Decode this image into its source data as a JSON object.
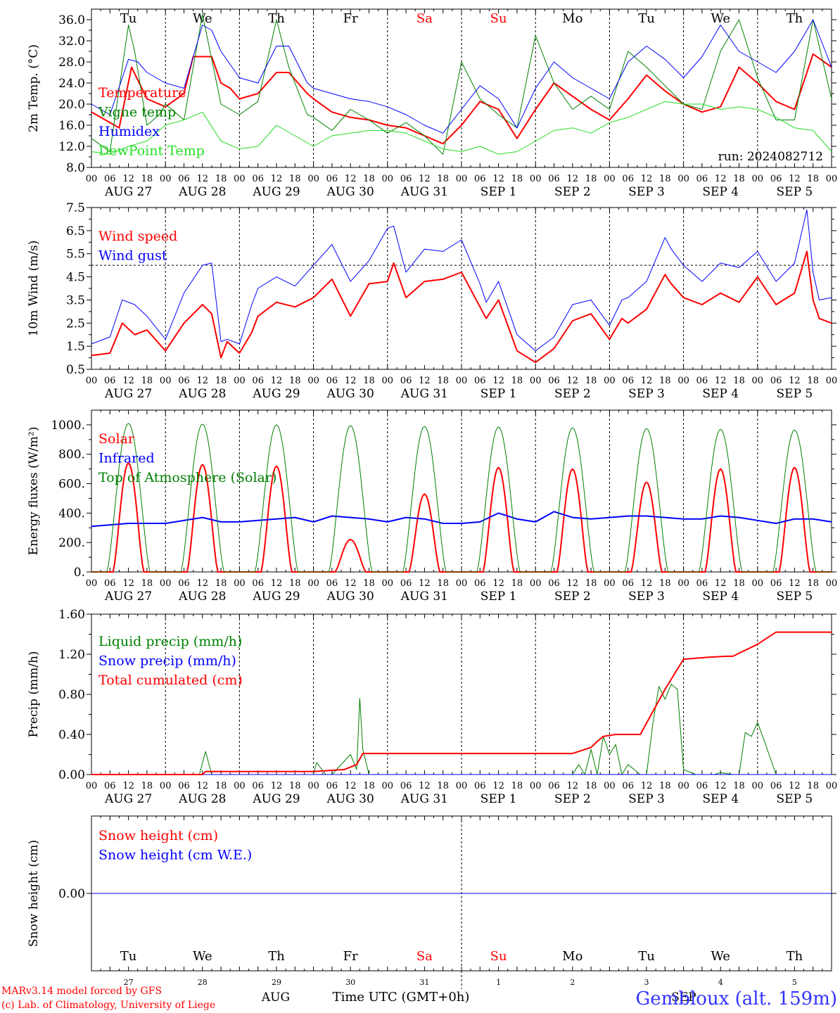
{
  "colors": {
    "red": "#ff0000",
    "green": "#008000",
    "blue": "#0000ff",
    "light_green": "#22dd22",
    "purple": "#7030a0",
    "footer_blue": "#3333ff"
  },
  "date_labels": [
    "AUG 27",
    "AUG 28",
    "AUG 29",
    "AUG 30",
    "AUG 31",
    "SEP  1",
    "SEP  2",
    "SEP  3",
    "SEP  4",
    "SEP  5"
  ],
  "hour_labels": [
    "00",
    "06",
    "12",
    "18"
  ],
  "hour_end_label": "00",
  "weekdays": [
    {
      "label": "Tu",
      "color": "#000000"
    },
    {
      "label": "We",
      "color": "#000000"
    },
    {
      "label": "Th",
      "color": "#000000"
    },
    {
      "label": "Fr",
      "color": "#000000"
    },
    {
      "label": "Sa",
      "color": "#ff0000"
    },
    {
      "label": "Su",
      "color": "#ff0000"
    },
    {
      "label": "Mo",
      "color": "#000000"
    },
    {
      "label": "Tu",
      "color": "#000000"
    },
    {
      "label": "We",
      "color": "#000000"
    },
    {
      "label": "Th",
      "color": "#000000"
    }
  ],
  "day_numbers": [
    "27",
    "28",
    "29",
    "30",
    "31",
    "1",
    "2",
    "3",
    "4",
    "5"
  ],
  "bottom_month_aug": "AUG",
  "bottom_month_sep": "SEP",
  "xlabel": "Time UTC (GMT+0h)",
  "footer": {
    "model": "MARv3.14 model forced by GFS",
    "credit": "(c) Lab. of Climatology, University of Liege",
    "location": "Gembloux (alt. 159m)"
  },
  "chart_data": [
    {
      "type": "line",
      "ylabel": "2m Temp. (°C)",
      "ylim": [
        8,
        38
      ],
      "yticks": [
        "8.0",
        "12.0",
        "16.0",
        "20.0",
        "24.0",
        "28.0",
        "32.0",
        "36.0"
      ],
      "run_label": "run: 2024082712",
      "x_unit": "hours since 2024-08-27 00 UTC",
      "series": [
        {
          "name": "Temperature",
          "color": "#ff0000",
          "width": 2,
          "x": [
            0,
            9,
            13,
            18,
            24,
            30,
            33,
            39,
            42,
            45,
            48,
            54,
            60,
            64,
            70,
            72,
            78,
            84,
            90,
            96,
            102,
            108,
            114,
            120,
            126,
            132,
            138,
            144,
            150,
            156,
            162,
            168,
            174,
            180,
            186,
            192,
            198,
            204,
            210,
            216,
            222,
            228,
            234,
            240
          ],
          "y": [
            18.5,
            15.5,
            27,
            21,
            19.5,
            22,
            29,
            29,
            24,
            23,
            21,
            22,
            26,
            26,
            22,
            21,
            18.5,
            17.5,
            17,
            16,
            15.5,
            14,
            12.5,
            16,
            20.5,
            19,
            13.5,
            19,
            24,
            21.5,
            19,
            17,
            21,
            25.5,
            22.5,
            20,
            18.5,
            19.5,
            27,
            24,
            20.5,
            19,
            29.5,
            27
          ]
        },
        {
          "name": "Vigne temp",
          "color": "#008000",
          "width": 1,
          "x": [
            0,
            6,
            12,
            14,
            18,
            22,
            24,
            30,
            36,
            42,
            48,
            54,
            60,
            64,
            70,
            72,
            78,
            84,
            90,
            96,
            102,
            108,
            114,
            120,
            126,
            132,
            138,
            144,
            150,
            156,
            162,
            168,
            174,
            180,
            186,
            192,
            198,
            204,
            210,
            216,
            222,
            228,
            234,
            240
          ],
          "y": [
            13.5,
            11,
            35,
            30,
            16,
            18,
            20,
            17,
            37,
            20,
            18,
            20.5,
            36,
            27,
            18,
            17.5,
            15,
            19,
            17,
            14.5,
            16.5,
            14,
            10.5,
            28,
            21,
            18,
            15.5,
            33,
            24,
            19,
            21.5,
            19,
            30,
            27,
            23.5,
            20,
            19,
            30,
            36,
            25,
            17,
            17,
            36,
            21
          ]
        },
        {
          "name": "Humidex",
          "color": "#0000ff",
          "width": 1,
          "x": [
            0,
            6,
            12,
            15,
            18,
            24,
            30,
            36,
            39,
            42,
            48,
            54,
            60,
            64,
            70,
            72,
            78,
            84,
            90,
            96,
            102,
            108,
            114,
            120,
            126,
            132,
            138,
            144,
            150,
            156,
            162,
            168,
            174,
            180,
            186,
            192,
            198,
            204,
            210,
            216,
            222,
            228,
            234,
            240
          ],
          "y": [
            20,
            18,
            28.5,
            28,
            26,
            24,
            23,
            35,
            34,
            30,
            25,
            24,
            31,
            31,
            24,
            23,
            22,
            21,
            20.5,
            19.5,
            18,
            16,
            14.5,
            19,
            23.5,
            21,
            15.5,
            23,
            28,
            25,
            23,
            21,
            28,
            31,
            28.5,
            25,
            29,
            35,
            30,
            28,
            26,
            30,
            36,
            27
          ]
        },
        {
          "name": "DewPoint Temp",
          "color": "#22dd22",
          "width": 1,
          "x": [
            0,
            6,
            12,
            18,
            24,
            30,
            36,
            42,
            48,
            54,
            60,
            66,
            72,
            78,
            84,
            90,
            96,
            102,
            108,
            114,
            120,
            126,
            132,
            138,
            144,
            150,
            156,
            162,
            168,
            174,
            180,
            186,
            192,
            198,
            204,
            210,
            216,
            222,
            228,
            234,
            240
          ],
          "y": [
            11,
            10.5,
            12,
            13,
            16,
            17,
            18.5,
            13,
            11.5,
            12,
            16,
            14,
            12,
            14,
            14.5,
            15,
            15,
            14.5,
            13,
            11.5,
            11,
            12,
            10.5,
            11,
            13,
            15,
            15.5,
            14.5,
            16.5,
            17.5,
            19,
            20.5,
            20,
            20,
            19,
            19.5,
            19,
            17.5,
            15.5,
            15,
            11
          ]
        }
      ]
    },
    {
      "type": "line",
      "ylabel": "10m Wind (m/s)",
      "ylim": [
        0.5,
        7.5
      ],
      "yticks": [
        "0.5",
        "1.5",
        "2.5",
        "3.5",
        "4.5",
        "5.5",
        "6.5",
        "7.5"
      ],
      "reference_line": 5,
      "series": [
        {
          "name": "Wind speed",
          "color": "#ff0000",
          "width": 2,
          "x": [
            0,
            6,
            10,
            14,
            18,
            24,
            30,
            36,
            39,
            42,
            44,
            48,
            52,
            54,
            60,
            66,
            72,
            78,
            84,
            90,
            96,
            98,
            102,
            108,
            114,
            120,
            126,
            128,
            132,
            138,
            144,
            150,
            156,
            162,
            168,
            172,
            174,
            180,
            186,
            188,
            192,
            198,
            204,
            210,
            216,
            222,
            228,
            232,
            234,
            236,
            240
          ],
          "y": [
            1.1,
            1.2,
            2.5,
            2,
            2.2,
            1.3,
            2.5,
            3.3,
            2.9,
            1,
            1.7,
            1.2,
            2.1,
            2.8,
            3.4,
            3.2,
            3.6,
            4.4,
            2.8,
            4.2,
            4.3,
            5.1,
            3.6,
            4.3,
            4.4,
            4.7,
            3.2,
            2.7,
            3.5,
            1.3,
            0.8,
            1.4,
            2.6,
            2.9,
            1.8,
            2.7,
            2.5,
            3.1,
            4.6,
            4.2,
            3.6,
            3.3,
            3.8,
            3.4,
            4.5,
            3.3,
            3.8,
            5.6,
            3.5,
            2.7,
            2.5
          ]
        },
        {
          "name": "Wind gust",
          "color": "#0000ff",
          "width": 1,
          "x": [
            0,
            6,
            10,
            14,
            18,
            24,
            30,
            36,
            39,
            42,
            44,
            48,
            52,
            54,
            60,
            66,
            72,
            78,
            84,
            90,
            96,
            98,
            102,
            108,
            114,
            120,
            126,
            128,
            132,
            138,
            144,
            150,
            156,
            162,
            168,
            172,
            174,
            180,
            186,
            188,
            192,
            198,
            204,
            210,
            216,
            222,
            228,
            232,
            234,
            236,
            240
          ],
          "y": [
            1.6,
            1.9,
            3.5,
            3.3,
            2.8,
            1.8,
            3.8,
            5,
            5.1,
            1.7,
            1.8,
            1.6,
            3.3,
            4,
            4.5,
            4.1,
            5,
            5.9,
            4.3,
            5.2,
            6.6,
            6.7,
            4.7,
            5.7,
            5.6,
            6.1,
            4.2,
            3.4,
            4.3,
            2,
            1.3,
            1.9,
            3.3,
            3.5,
            2.4,
            3.5,
            3.6,
            4.3,
            6.2,
            5.7,
            5,
            4.3,
            5.1,
            4.9,
            5.6,
            4.3,
            5.1,
            7.4,
            4.7,
            3.5,
            3.6
          ]
        }
      ]
    },
    {
      "type": "line",
      "ylabel": "Energy fluxes (W/m²)",
      "ylim": [
        0,
        1100
      ],
      "yticks": [
        "0.",
        "200.",
        "400.",
        "600.",
        "800.",
        "1000."
      ],
      "series": [
        {
          "name": "Solar",
          "color": "#ff0000",
          "width": 2,
          "daily_peak": [
            740,
            730,
            720,
            220,
            530,
            710,
            700,
            610,
            700,
            710
          ]
        },
        {
          "name": "Infrared",
          "color": "#0000ff",
          "width": 2,
          "x": [
            0,
            12,
            24,
            36,
            42,
            48,
            54,
            60,
            66,
            72,
            78,
            84,
            90,
            96,
            102,
            108,
            114,
            120,
            126,
            132,
            138,
            144,
            150,
            156,
            162,
            168,
            174,
            180,
            186,
            192,
            198,
            204,
            210,
            216,
            222,
            228,
            234,
            240
          ],
          "y": [
            310,
            330,
            330,
            370,
            340,
            340,
            350,
            360,
            370,
            340,
            380,
            370,
            360,
            340,
            370,
            360,
            330,
            330,
            340,
            400,
            360,
            340,
            410,
            370,
            360,
            370,
            380,
            380,
            370,
            360,
            360,
            380,
            370,
            350,
            330,
            360,
            360,
            340
          ]
        },
        {
          "name": "Top of Atmosphere (Solar)",
          "color": "#008000",
          "width": 1,
          "daily_peak": [
            1010,
            1005,
            1000,
            995,
            990,
            985,
            980,
            975,
            970,
            965
          ]
        }
      ]
    },
    {
      "type": "line",
      "ylabel": "Precip (mm/h)",
      "ylim": [
        0,
        1.6
      ],
      "yticks": [
        "0.00",
        "0.40",
        "0.80",
        "1.20",
        "1.60"
      ],
      "series": [
        {
          "name": "Liquid precip (mm/h)",
          "color": "#008000",
          "width": 1,
          "x": [
            0,
            35,
            37,
            39,
            42,
            72,
            73,
            76,
            78,
            84,
            86,
            87,
            88,
            90,
            96,
            156,
            158,
            160,
            162,
            164,
            166,
            168,
            170,
            172,
            174,
            178,
            180,
            182,
            184,
            186,
            188,
            190,
            192,
            196,
            198,
            202,
            204,
            208,
            210,
            212,
            214,
            216,
            218,
            222,
            240
          ],
          "y": [
            0,
            0,
            0.23,
            0,
            0,
            0,
            0.12,
            0,
            0,
            0.2,
            0.05,
            0.76,
            0.25,
            0,
            0,
            0,
            0.1,
            0,
            0.25,
            0,
            0.38,
            0.2,
            0.3,
            0,
            0.1,
            0,
            0,
            0.5,
            0.88,
            0.75,
            0.9,
            0.85,
            0.05,
            0,
            0,
            0,
            0.02,
            0,
            0,
            0.42,
            0.38,
            0.52,
            0.35,
            0,
            0
          ]
        },
        {
          "name": "Snow precip (mm/h)",
          "color": "#0000ff",
          "width": 1,
          "x": [
            0,
            240
          ],
          "y": [
            0,
            0
          ]
        },
        {
          "name": "Total cumulated (cm)",
          "color": "#ff0000",
          "width": 2,
          "x": [
            0,
            36,
            37,
            72,
            82,
            86,
            88,
            156,
            162,
            164,
            166,
            170,
            178,
            186,
            190,
            192,
            200,
            206,
            208,
            216,
            222,
            240
          ],
          "y": [
            0,
            0,
            0.03,
            0.03,
            0.05,
            0.1,
            0.21,
            0.21,
            0.27,
            0.33,
            0.38,
            0.4,
            0.4,
            0.85,
            1.05,
            1.15,
            1.17,
            1.18,
            1.18,
            1.3,
            1.42,
            1.42
          ]
        }
      ]
    },
    {
      "type": "line",
      "ylabel": "Snow height (cm)",
      "ylim": [
        -1,
        1
      ],
      "yticks": [
        "0.00"
      ],
      "series": [
        {
          "name": "Snow height (cm)",
          "color": "#ff0000",
          "width": 1,
          "x": [
            0,
            240
          ],
          "y": [
            0,
            0
          ]
        },
        {
          "name": "Snow height (cm W.E.)",
          "color": "#0000ff",
          "width": 1,
          "x": [
            0,
            240
          ],
          "y": [
            0,
            0
          ]
        }
      ]
    }
  ]
}
